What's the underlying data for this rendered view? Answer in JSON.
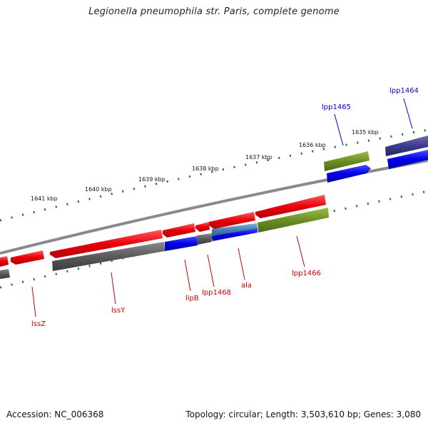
{
  "header": {
    "title": "Legionella pneumophila str. Paris, complete genome"
  },
  "footer": {
    "accession": "Accession: NC_006368",
    "topology": "Topology: circular; Length: 3,503,610 bp; Genes: 3,080"
  },
  "scale_labels": [
    "1641 kbp",
    "1640 kbp",
    "1639 kbp",
    "1638 kbp",
    "1637 kbp",
    "1636 kbp",
    "1635 kbp"
  ],
  "gene_labels": {
    "lssZ": "lssZ",
    "lssY": "lssY",
    "lipB": "lipB",
    "lpp1468": "lpp1468",
    "ala": "ala",
    "lpp1466": "lpp1466",
    "lpp1465": "lpp1465",
    "lpp1464": "lpp1464"
  },
  "colors": {
    "forward_gene": "#e8000a",
    "reverse_gene_grey": "#5a5a5a",
    "cds_blue": "#0000e6",
    "cds_green": "#6b8e23",
    "cds_purple": "#3c3c8c",
    "cds_steel": "#4682b4",
    "backbone": "#8a8a8a",
    "scale_ticks": "#1a7a1a",
    "label_red": "#cc0000",
    "label_blue": "#0000cc"
  }
}
